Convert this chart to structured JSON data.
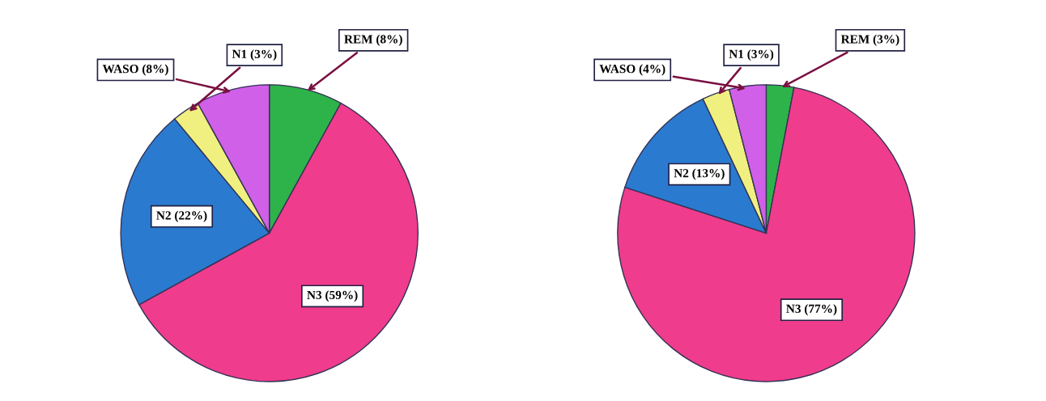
{
  "chart_data": [
    {
      "type": "pie",
      "categories": [
        "REM (8%)",
        "N3 (59%)",
        "N2 (22%)",
        "N1 (3%)",
        "WASO (8%)"
      ],
      "values": [
        8,
        59,
        22,
        3,
        8
      ],
      "colors": [
        "#2db34a",
        "#f03c8c",
        "#2a7ad0",
        "#f0f080",
        "#d060e8"
      ]
    },
    {
      "type": "pie",
      "categories": [
        "REM (3%)",
        "N3 (77%)",
        "N2 (13%)",
        "N1 (3%)",
        "WASO (4%)"
      ],
      "values": [
        3,
        77,
        13,
        3,
        4
      ],
      "colors": [
        "#2db34a",
        "#f03c8c",
        "#2a7ad0",
        "#f0f080",
        "#d060e8"
      ]
    }
  ]
}
